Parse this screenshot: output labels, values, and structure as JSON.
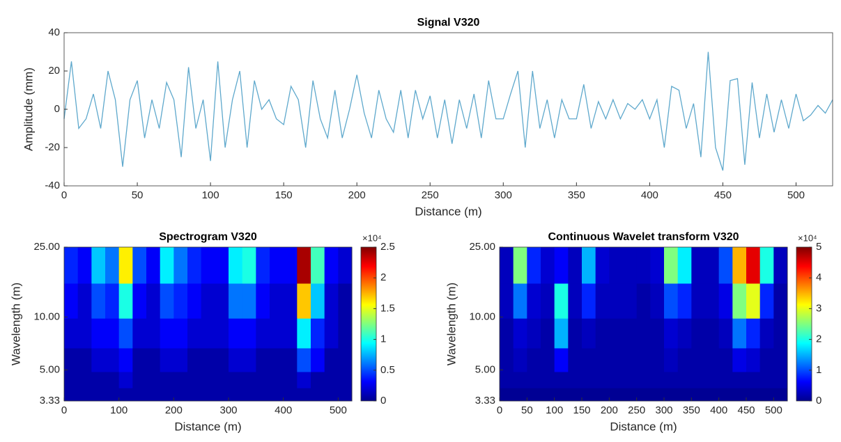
{
  "chart_data": [
    {
      "type": "line",
      "title": "Signal V320",
      "xlabel": "Distance (m)",
      "ylabel": "Amplitude (mm)",
      "x": [
        0,
        5,
        10,
        15,
        20,
        25,
        30,
        35,
        40,
        45,
        50,
        55,
        60,
        65,
        70,
        75,
        80,
        85,
        90,
        95,
        100,
        105,
        110,
        115,
        120,
        125,
        130,
        135,
        140,
        145,
        150,
        155,
        160,
        165,
        170,
        175,
        180,
        185,
        190,
        195,
        200,
        205,
        210,
        215,
        220,
        225,
        230,
        235,
        240,
        245,
        250,
        255,
        260,
        265,
        270,
        275,
        280,
        285,
        290,
        295,
        300,
        305,
        310,
        315,
        320,
        325,
        330,
        335,
        340,
        345,
        350,
        355,
        360,
        365,
        370,
        375,
        380,
        385,
        390,
        395,
        400,
        405,
        410,
        415,
        420,
        425,
        430,
        435,
        440,
        445,
        450,
        455,
        460,
        465,
        470,
        475,
        480,
        485,
        490,
        495,
        500,
        505,
        510,
        515,
        520,
        525
      ],
      "series": [
        {
          "color": "#5ea8cc",
          "values": [
            -5,
            25,
            -10,
            -5,
            8,
            -10,
            20,
            5,
            -30,
            5,
            15,
            -15,
            5,
            -10,
            14,
            5,
            -25,
            22,
            -10,
            5,
            -27,
            25,
            -20,
            5,
            20,
            -20,
            15,
            0,
            5,
            -5,
            -8,
            12,
            5,
            -20,
            15,
            -5,
            -15,
            10,
            -15,
            0,
            18,
            -2,
            -15,
            10,
            -5,
            -12,
            10,
            -15,
            10,
            -5,
            7,
            -15,
            5,
            -18,
            5,
            -10,
            8,
            -15,
            15,
            -5,
            -5,
            8,
            20,
            -20,
            20,
            -10,
            5,
            -15,
            5,
            -5,
            -5,
            13,
            -10,
            4,
            -5,
            5,
            -5,
            3,
            0,
            5,
            -5,
            5,
            -20,
            12,
            10,
            -10,
            3,
            -25,
            30,
            -20,
            -32,
            15,
            16,
            -29,
            14,
            -15,
            8,
            -12,
            5,
            -10,
            8,
            -6,
            -3,
            2,
            -2,
            5
          ]
        }
      ],
      "xlim": [
        0,
        525
      ],
      "xticks": [
        0,
        50,
        100,
        150,
        200,
        250,
        300,
        350,
        400,
        450,
        500
      ],
      "ylim": [
        -40,
        40
      ],
      "yticks": [
        -40,
        -20,
        0,
        20,
        40
      ]
    },
    {
      "type": "heatmap",
      "title": "Spectrogram V320",
      "xlabel": "Distance (m)",
      "ylabel": "Wavelength (m)",
      "x": [
        12.5,
        37.5,
        62.5,
        87.5,
        112.5,
        137.5,
        162.5,
        187.5,
        212.5,
        237.5,
        262.5,
        287.5,
        312.5,
        337.5,
        362.5,
        387.5,
        412.5,
        437.5,
        462.5,
        487.5,
        512.5
      ],
      "y": [
        20,
        12,
        8,
        5.5,
        4.3,
        3.6
      ],
      "z": [
        [
          0.4,
          0.3,
          0.8,
          0.6,
          1.6,
          0.5,
          0.3,
          0.9,
          0.6,
          0.4,
          0.3,
          0.3,
          0.9,
          1.0,
          0.4,
          0.3,
          0.3,
          2.4,
          1.1,
          0.3,
          0.2
        ],
        [
          0.3,
          0.2,
          0.5,
          0.4,
          1.0,
          0.3,
          0.2,
          0.5,
          0.4,
          0.3,
          0.2,
          0.2,
          0.6,
          0.6,
          0.3,
          0.2,
          0.2,
          1.7,
          0.8,
          0.2,
          0.1
        ],
        [
          0.2,
          0.2,
          0.3,
          0.3,
          0.5,
          0.2,
          0.2,
          0.3,
          0.3,
          0.2,
          0.2,
          0.2,
          0.3,
          0.3,
          0.2,
          0.2,
          0.2,
          0.9,
          0.4,
          0.2,
          0.1
        ],
        [
          0.1,
          0.1,
          0.2,
          0.2,
          0.3,
          0.1,
          0.1,
          0.2,
          0.2,
          0.1,
          0.1,
          0.1,
          0.2,
          0.2,
          0.1,
          0.1,
          0.1,
          0.5,
          0.3,
          0.1,
          0.1
        ],
        [
          0.1,
          0.1,
          0.1,
          0.1,
          0.2,
          0.1,
          0.1,
          0.1,
          0.1,
          0.1,
          0.1,
          0.1,
          0.1,
          0.1,
          0.1,
          0.1,
          0.1,
          0.2,
          0.1,
          0.1,
          0.1
        ],
        [
          0.1,
          0.1,
          0.1,
          0.1,
          0.1,
          0.1,
          0.1,
          0.1,
          0.1,
          0.1,
          0.1,
          0.1,
          0.1,
          0.1,
          0.1,
          0.1,
          0.1,
          0.1,
          0.1,
          0.1,
          0.1
        ]
      ],
      "xlim": [
        0,
        525
      ],
      "xticks": [
        0,
        100,
        200,
        300,
        400,
        500
      ],
      "ylim": [
        3.33,
        25
      ],
      "yscale": "log",
      "yticks": [
        {
          "value": 25,
          "label": "25.00"
        },
        {
          "value": 10,
          "label": "10.00"
        },
        {
          "value": 5,
          "label": "5.00"
        },
        3.33
      ],
      "colorbar": {
        "lim": [
          0,
          2.5
        ],
        "ticks": [
          0,
          0.5,
          1,
          1.5,
          2,
          2.5
        ],
        "multiplier": "×10⁴"
      }
    },
    {
      "type": "heatmap",
      "title": "Continuous Wavelet transform V320",
      "xlabel": "Distance (m)",
      "ylabel": "Wavelength (m)",
      "x": [
        12.5,
        37.5,
        62.5,
        87.5,
        112.5,
        137.5,
        162.5,
        187.5,
        212.5,
        237.5,
        262.5,
        287.5,
        312.5,
        337.5,
        362.5,
        387.5,
        412.5,
        437.5,
        462.5,
        487.5,
        512.5
      ],
      "y": [
        20,
        12,
        8,
        5.5,
        4.3,
        3.6
      ],
      "z": [
        [
          0.3,
          2.5,
          0.8,
          0.4,
          0.6,
          0.3,
          1.5,
          0.4,
          0.3,
          0.3,
          0.3,
          0.4,
          2.5,
          1.8,
          0.3,
          0.3,
          1.0,
          3.5,
          4.5,
          2.0,
          0.3
        ],
        [
          0.3,
          1.2,
          0.4,
          0.3,
          2.0,
          0.3,
          0.8,
          0.3,
          0.3,
          0.3,
          0.2,
          0.3,
          1.0,
          0.8,
          0.3,
          0.3,
          0.5,
          2.5,
          3.0,
          0.8,
          0.2
        ],
        [
          0.2,
          0.4,
          0.3,
          0.2,
          1.5,
          0.2,
          0.3,
          0.2,
          0.2,
          0.2,
          0.2,
          0.2,
          0.4,
          0.3,
          0.2,
          0.2,
          0.3,
          1.2,
          0.8,
          0.3,
          0.2
        ],
        [
          0.2,
          0.3,
          0.2,
          0.2,
          0.6,
          0.2,
          0.2,
          0.2,
          0.2,
          0.2,
          0.2,
          0.2,
          0.3,
          0.2,
          0.2,
          0.2,
          0.2,
          0.5,
          0.4,
          0.2,
          0.2
        ],
        [
          0.2,
          0.2,
          0.2,
          0.2,
          0.2,
          0.2,
          0.2,
          0.2,
          0.2,
          0.2,
          0.2,
          0.2,
          0.2,
          0.2,
          0.2,
          0.2,
          0.2,
          0.2,
          0.2,
          0.2,
          0.2
        ],
        [
          0.1,
          0.1,
          0.1,
          0.1,
          0.1,
          0.1,
          0.1,
          0.1,
          0.1,
          0.1,
          0.1,
          0.1,
          0.1,
          0.1,
          0.1,
          0.1,
          0.1,
          0.1,
          0.1,
          0.1,
          0.1
        ]
      ],
      "xlim": [
        0,
        525
      ],
      "xticks": [
        0,
        50,
        100,
        150,
        200,
        250,
        300,
        350,
        400,
        450,
        500
      ],
      "ylim": [
        3.33,
        25
      ],
      "yscale": "log",
      "yticks": [
        {
          "value": 25,
          "label": "25.00"
        },
        {
          "value": 10,
          "label": "10.00"
        },
        {
          "value": 5,
          "label": "5.00"
        },
        3.33
      ],
      "colorbar": {
        "lim": [
          0,
          5
        ],
        "ticks": [
          0,
          1,
          2,
          3,
          4,
          5
        ],
        "multiplier": "×10⁴"
      }
    }
  ]
}
